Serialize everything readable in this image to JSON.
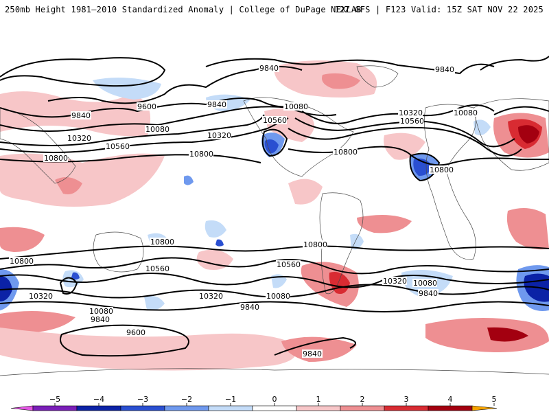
{
  "header": {
    "left_title": "250mb Height 1981–2010 Standardized Anomaly | College of DuPage NEXLAB",
    "right_title": "12Z GFS | F123 Valid: 15Z SAT NOV 22 2025"
  },
  "map": {
    "contour_labels": [
      "9840",
      "9840",
      "9600",
      "9840",
      "9840",
      "10080",
      "10080",
      "10080",
      "10320",
      "10320",
      "10560",
      "10560",
      "10560",
      "10800",
      "10800",
      "10800",
      "10320",
      "10560",
      "10080",
      "10800",
      "10800",
      "10800",
      "10560",
      "10320",
      "10080",
      "9840",
      "10800",
      "10560",
      "10320",
      "10080",
      "9840",
      "10320",
      "10080",
      "9840",
      "9600",
      "9840"
    ],
    "colors": {
      "neg5": "#8b1a8b",
      "neg4": "#0b22a6",
      "neg3": "#2a4fd1",
      "neg2": "#6f99ee",
      "neg1": "#c4dcf8",
      "zero": "#ffffff",
      "pos1": "#f7c6c8",
      "pos2": "#ee8f92",
      "pos3": "#d82b32",
      "pos4": "#a30010",
      "pos5": "#f5a300"
    }
  },
  "legend": {
    "tick_labels": [
      "−5",
      "−4",
      "−3",
      "−2",
      "−1",
      "0",
      "1",
      "2",
      "3",
      "4",
      "5"
    ],
    "colors": [
      "#e256e2",
      "#7a1fb8",
      "#0b22a6",
      "#2a4fd1",
      "#6f99ee",
      "#c4dcf8",
      "#ffffff",
      "#f7c6c8",
      "#ee8f92",
      "#d82b32",
      "#a30010",
      "#f5a300"
    ]
  }
}
